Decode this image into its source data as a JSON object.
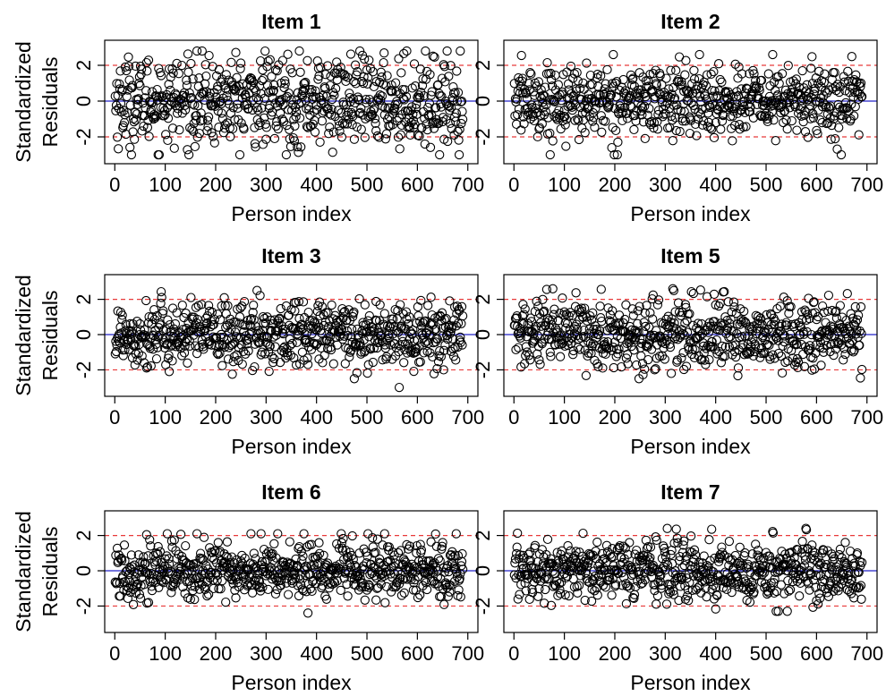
{
  "figure": {
    "x_axis_label": "Person index",
    "y_axis_label_line1": "Standardized",
    "y_axis_label_line2": "Residuals",
    "x_ticks": [
      0,
      100,
      200,
      300,
      400,
      500,
      600,
      700
    ],
    "y_ticks": [
      -2,
      0,
      2
    ],
    "xlim": [
      -20,
      720
    ],
    "ylim": [
      -3.5,
      3.4
    ],
    "reference_lines": {
      "zero": {
        "value": 0,
        "color": "#2020c8",
        "style": "solid"
      },
      "bounds": {
        "values": [
          -2,
          2
        ],
        "color": "#e83a3a",
        "style": "dashed"
      }
    },
    "marker": {
      "shape": "open-circle",
      "color": "#000000"
    },
    "n_points_per_panel": 690
  },
  "chart_data": [
    {
      "type": "scatter",
      "title": "Item 1",
      "x_range": [
        1,
        690
      ],
      "y_range_observed": [
        -3.0,
        2.8
      ],
      "spread": 1.25
    },
    {
      "type": "scatter",
      "title": "Item 2",
      "x_range": [
        1,
        690
      ],
      "y_range_observed": [
        -3.0,
        2.6
      ],
      "spread": 1.0
    },
    {
      "type": "scatter",
      "title": "Item 3",
      "x_range": [
        1,
        690
      ],
      "y_range_observed": [
        -3.0,
        2.7
      ],
      "spread": 0.95
    },
    {
      "type": "scatter",
      "title": "Item 5",
      "x_range": [
        1,
        690
      ],
      "y_range_observed": [
        -2.5,
        2.6
      ],
      "spread": 1.0
    },
    {
      "type": "scatter",
      "title": "Item 6",
      "x_range": [
        1,
        690
      ],
      "y_range_observed": [
        -2.4,
        2.1
      ],
      "spread": 0.85
    },
    {
      "type": "scatter",
      "title": "Item 7",
      "x_range": [
        1,
        690
      ],
      "y_range_observed": [
        -2.3,
        2.4
      ],
      "spread": 0.85
    }
  ]
}
